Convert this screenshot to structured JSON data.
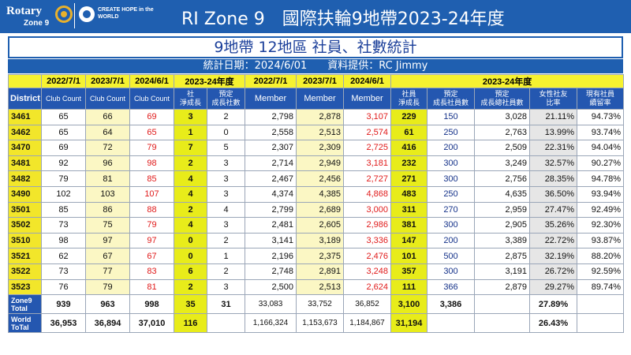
{
  "header": {
    "logo_rotary": "Rotary",
    "logo_zone": "Zone 9",
    "create_hope": "CREATE HOPE in the WORLD",
    "title": "RI Zone 9　國際扶輪9地帶2023-24年度"
  },
  "banner": {
    "title": "9地帶 12地區 社員、社數統計",
    "subtitle": "統計日期：2024/6/01　　資料提供：RC Jimmy"
  },
  "table": {
    "year_row": [
      "",
      "2022/7/1",
      "2023/7/1",
      "2024/6/1",
      "2023-24年度",
      "",
      "2022/7/1",
      "2023/7/1",
      "2024/6/1",
      "2023-24年度"
    ],
    "labels": [
      "District",
      "Club Count",
      "Club Count",
      "Club Count",
      "社\n淨成長",
      "預定\n成長社數",
      "Member",
      "Member",
      "Member",
      "社員\n淨成長",
      "預定\n成長社員數",
      "預定\n成長總社員數",
      "女性社友\n比率",
      "現有社員\n續留率"
    ],
    "rows": [
      [
        "3461",
        "65",
        "66",
        "69",
        "3",
        "2",
        "2,798",
        "2,878",
        "3,107",
        "229",
        "150",
        "3,028",
        "21.11%",
        "94.73%"
      ],
      [
        "3462",
        "65",
        "64",
        "65",
        "1",
        "0",
        "2,558",
        "2,513",
        "2,574",
        "61",
        "250",
        "2,763",
        "13.99%",
        "93.74%"
      ],
      [
        "3470",
        "69",
        "72",
        "79",
        "7",
        "5",
        "2,307",
        "2,309",
        "2,725",
        "416",
        "200",
        "2,509",
        "22.31%",
        "94.04%"
      ],
      [
        "3481",
        "92",
        "96",
        "98",
        "2",
        "3",
        "2,714",
        "2,949",
        "3,181",
        "232",
        "300",
        "3,249",
        "32.57%",
        "90.27%"
      ],
      [
        "3482",
        "79",
        "81",
        "85",
        "4",
        "3",
        "2,467",
        "2,456",
        "2,727",
        "271",
        "300",
        "2,756",
        "28.35%",
        "94.78%"
      ],
      [
        "3490",
        "102",
        "103",
        "107",
        "4",
        "3",
        "4,374",
        "4,385",
        "4,868",
        "483",
        "250",
        "4,635",
        "36.50%",
        "93.94%"
      ],
      [
        "3501",
        "85",
        "86",
        "88",
        "2",
        "4",
        "2,799",
        "2,689",
        "3,000",
        "311",
        "270",
        "2,959",
        "27.47%",
        "92.49%"
      ],
      [
        "3502",
        "73",
        "75",
        "79",
        "4",
        "3",
        "2,481",
        "2,605",
        "2,986",
        "381",
        "300",
        "2,905",
        "35.26%",
        "92.30%"
      ],
      [
        "3510",
        "98",
        "97",
        "97",
        "0",
        "2",
        "3,141",
        "3,189",
        "3,336",
        "147",
        "200",
        "3,389",
        "22.72%",
        "93.87%"
      ],
      [
        "3521",
        "62",
        "67",
        "67",
        "0",
        "1",
        "2,196",
        "2,375",
        "2,476",
        "101",
        "500",
        "2,875",
        "32.19%",
        "88.20%"
      ],
      [
        "3522",
        "73",
        "77",
        "83",
        "6",
        "2",
        "2,748",
        "2,891",
        "3,248",
        "357",
        "300",
        "3,191",
        "26.72%",
        "92.59%"
      ],
      [
        "3523",
        "76",
        "79",
        "81",
        "2",
        "3",
        "2,500",
        "2,513",
        "2,624",
        "111",
        "366",
        "2,879",
        "29.27%",
        "89.74%"
      ]
    ],
    "zone_total": [
      "Zone9\nTotal",
      "939",
      "963",
      "998",
      "35",
      "31",
      "33,083",
      "33,752",
      "36,852",
      "3,100",
      "3,386",
      "",
      "27.89%",
      ""
    ],
    "world_total": [
      "World\nToTal",
      "36,953",
      "36,894",
      "37,010",
      "116",
      "",
      "1,166,324",
      "1,153,673",
      "1,184,867",
      "31,194",
      "",
      "",
      "26.43%",
      ""
    ]
  },
  "colors": {
    "header_blue": "#1f5fb0",
    "highlight_yellow": "#f6f230",
    "red_value": "#e01a1a",
    "navy_value": "#16338a"
  }
}
